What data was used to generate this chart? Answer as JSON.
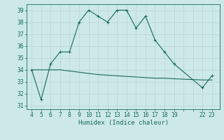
{
  "x_humidex": [
    4,
    5,
    6,
    7,
    8,
    9,
    10,
    11,
    12,
    13,
    14,
    15,
    16,
    17,
    18,
    19,
    22,
    23
  ],
  "y_humidex": [
    34,
    31.5,
    34.5,
    35.5,
    35.5,
    38,
    39,
    38.5,
    38,
    39,
    39,
    37.5,
    38.5,
    36.5,
    35.5,
    34.5,
    32.5,
    33.5
  ],
  "x_ref": [
    4,
    5,
    6,
    7,
    8,
    9,
    10,
    11,
    12,
    13,
    14,
    15,
    16,
    17,
    18,
    19,
    22,
    23
  ],
  "y_ref": [
    34,
    34,
    34,
    34,
    33.9,
    33.8,
    33.7,
    33.6,
    33.55,
    33.5,
    33.45,
    33.4,
    33.35,
    33.3,
    33.3,
    33.25,
    33.15,
    33.15
  ],
  "line_color": "#1a6b5a",
  "bg_color": "#cce8e8",
  "grid_color_major": "#b8d4d4",
  "grid_color_minor": "#c8e0e0",
  "xlabel": "Humidex (Indice chaleur)",
  "ylim": [
    30.7,
    39.5
  ],
  "xlim": [
    3.5,
    23.8
  ],
  "xticks": [
    4,
    5,
    6,
    7,
    8,
    9,
    10,
    11,
    12,
    13,
    14,
    15,
    16,
    17,
    18,
    19,
    22,
    23
  ],
  "yticks": [
    31,
    32,
    33,
    34,
    35,
    36,
    37,
    38,
    39
  ],
  "xlabel_fontsize": 6.5,
  "tick_fontsize": 5.8
}
